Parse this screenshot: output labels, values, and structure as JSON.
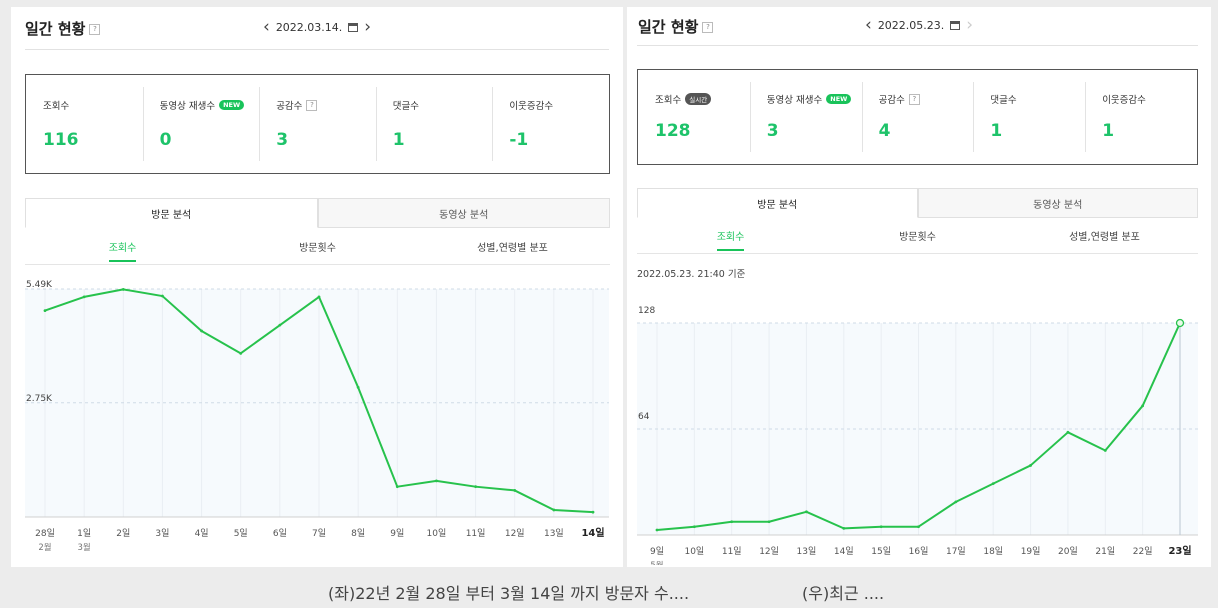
{
  "left": {
    "title": "일간 현황",
    "help_mark": "?",
    "date": "2022.03.14.",
    "stats": [
      {
        "label": "조회수",
        "value": "116"
      },
      {
        "label": "동영상 재생수",
        "badge": "NEW",
        "value": "0"
      },
      {
        "label": "공감수",
        "help": "?",
        "value": "3"
      },
      {
        "label": "댓글수",
        "value": "1"
      },
      {
        "label": "이웃증감수",
        "value": "-1"
      }
    ],
    "tabs": [
      "방문 분석",
      "동영상 분석"
    ],
    "subtabs": [
      "조회수",
      "방문횟수",
      "성별,연령별 분포"
    ],
    "chart_data": {
      "type": "line",
      "x": [
        "28일",
        "1일",
        "2일",
        "3일",
        "4일",
        "5일",
        "6일",
        "7일",
        "8일",
        "9일",
        "10일",
        "11일",
        "12일",
        "13일",
        "14일"
      ],
      "month_labels": [
        {
          "index": 0,
          "text": "2월"
        },
        {
          "index": 1,
          "text": "3월"
        }
      ],
      "y_tick_labels": [
        "5.49K",
        "2.75K"
      ],
      "y_ticks": [
        5490,
        2750
      ],
      "values": [
        4970,
        5300,
        5480,
        5320,
        4480,
        3940,
        4620,
        5300,
        3120,
        730,
        870,
        730,
        640,
        170,
        116
      ],
      "ylim": [
        0,
        5490
      ],
      "color": "#27c24c",
      "highlight_last_label": true
    }
  },
  "right": {
    "title": "일간 현황",
    "help_mark": "?",
    "date": "2022.05.23.",
    "stats": [
      {
        "label": "조회수",
        "badge": "실시간",
        "value": "128"
      },
      {
        "label": "동영상 재생수",
        "badge": "NEW",
        "value": "3"
      },
      {
        "label": "공감수",
        "help": "?",
        "value": "4"
      },
      {
        "label": "댓글수",
        "value": "1"
      },
      {
        "label": "이웃증감수",
        "value": "1"
      }
    ],
    "tabs": [
      "방문 분석",
      "동영상 분석"
    ],
    "subtabs": [
      "조회수",
      "방문횟수",
      "성별,연령별 분포"
    ],
    "as_of": "2022.05.23. 21:40 기준",
    "chart_data": {
      "type": "line",
      "x": [
        "9일",
        "10일",
        "11일",
        "12일",
        "13일",
        "14일",
        "15일",
        "16일",
        "17일",
        "18일",
        "19일",
        "20일",
        "21일",
        "22일",
        "23일"
      ],
      "month_labels": [
        {
          "index": 0,
          "text": "5월"
        }
      ],
      "y_tick_labels": [
        "128",
        "64"
      ],
      "y_ticks": [
        128,
        64
      ],
      "values": [
        3,
        5,
        8,
        8,
        14,
        4,
        5,
        5,
        20,
        31,
        42,
        62,
        51,
        78,
        128
      ],
      "ylim": [
        0,
        128
      ],
      "color": "#27c24c",
      "highlight_last_label": true,
      "last_point_marker": true
    }
  },
  "captions": {
    "left": "(좌)22년 2월 28일 부터 3월 14일 까지 방문자 수....",
    "right": "(우)최근 ...."
  }
}
